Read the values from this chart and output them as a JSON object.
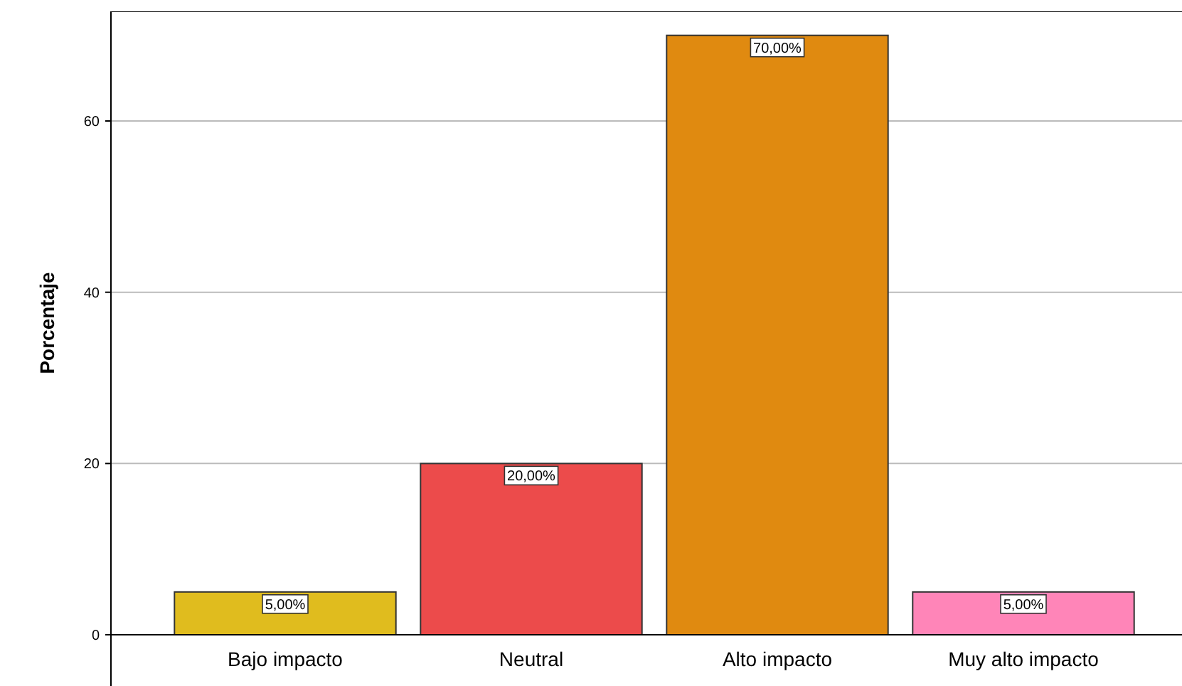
{
  "chart_data": {
    "type": "bar",
    "ylabel": "Porcentaje",
    "categories": [
      "Bajo impacto",
      "Neutral",
      "Alto impacto",
      "Muy alto impacto"
    ],
    "values": [
      5,
      20,
      70,
      5
    ],
    "colors": [
      "#e0bc1e",
      "#ec4b4b",
      "#e08a10",
      "#ff85b8"
    ],
    "value_labels": [
      "5,00%",
      "20,00%",
      "70,00%",
      "5,00%"
    ],
    "ylim": [
      0,
      72.8
    ],
    "yticks": [
      0,
      20,
      40,
      60
    ],
    "grid": "y"
  }
}
